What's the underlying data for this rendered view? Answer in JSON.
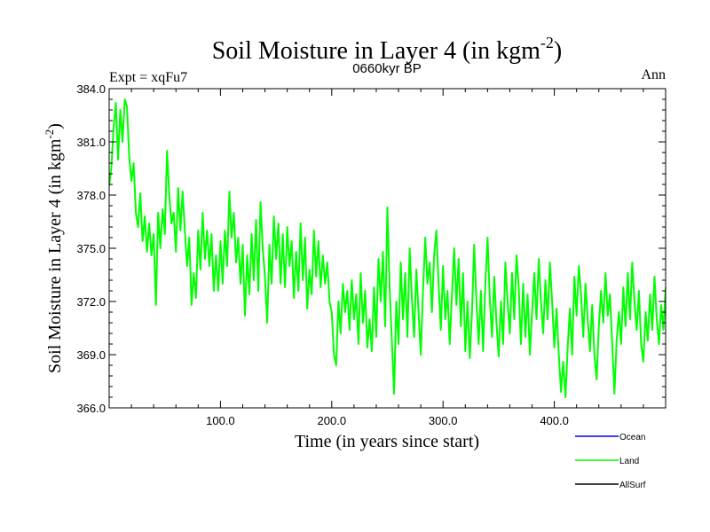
{
  "chart_data": {
    "type": "line",
    "title": "Soil Moisture in Layer 4 (in kgm",
    "title_sup": "-2",
    "title_close": ")",
    "subtitle": "0660kyr BP",
    "left_label": "Expt = xqFu7",
    "right_label": "Ann",
    "xlabel": "Time (in years since start)",
    "ylabel": "Soil Moisture in Layer 4 (in kgm",
    "ylabel_sup": "-2",
    "ylabel_close": ")",
    "xlim": [
      0,
      500
    ],
    "ylim": [
      366.0,
      384.0
    ],
    "x_ticks": [
      100,
      200,
      300,
      400
    ],
    "x_tick_labels": [
      "100.0",
      "200.0",
      "300.0",
      "400.0"
    ],
    "y_ticks": [
      366,
      369,
      372,
      375,
      378,
      381,
      384
    ],
    "y_tick_labels": [
      "366.0",
      "369.0",
      "372.0",
      "375.0",
      "378.0",
      "381.0",
      "384.0"
    ],
    "legend": [
      {
        "name": "Ocean",
        "color": "#0000ff"
      },
      {
        "name": "Land",
        "color": "#00ff00"
      },
      {
        "name": "AllSurf",
        "color": "#000000"
      }
    ],
    "series": [
      {
        "name": "Land",
        "color": "#00ff00",
        "points": [
          [
            0,
            378.5
          ],
          [
            2,
            379.6
          ],
          [
            4,
            381.8
          ],
          [
            6,
            383.2
          ],
          [
            8,
            380.0
          ],
          [
            10,
            382.8
          ],
          [
            12,
            381.0
          ],
          [
            14,
            383.4
          ],
          [
            16,
            383.0
          ],
          [
            18,
            380.2
          ],
          [
            20,
            378.8
          ],
          [
            22,
            379.8
          ],
          [
            24,
            377.0
          ],
          [
            26,
            376.2
          ],
          [
            28,
            378.1
          ],
          [
            30,
            375.4
          ],
          [
            32,
            376.8
          ],
          [
            34,
            374.8
          ],
          [
            36,
            376.4
          ],
          [
            38,
            374.6
          ],
          [
            40,
            375.8
          ],
          [
            42,
            371.8
          ],
          [
            44,
            377.0
          ],
          [
            46,
            375.0
          ],
          [
            48,
            377.2
          ],
          [
            50,
            375.8
          ],
          [
            52,
            380.5
          ],
          [
            54,
            378.0
          ],
          [
            56,
            376.4
          ],
          [
            58,
            377.0
          ],
          [
            60,
            374.8
          ],
          [
            62,
            378.4
          ],
          [
            64,
            376.0
          ],
          [
            66,
            378.2
          ],
          [
            68,
            376.0
          ],
          [
            70,
            374.0
          ],
          [
            72,
            375.6
          ],
          [
            74,
            371.8
          ],
          [
            76,
            373.6
          ],
          [
            78,
            372.2
          ],
          [
            80,
            376.0
          ],
          [
            82,
            373.8
          ],
          [
            84,
            377.0
          ],
          [
            86,
            374.4
          ],
          [
            88,
            376.0
          ],
          [
            90,
            374.0
          ],
          [
            92,
            375.8
          ],
          [
            94,
            372.6
          ],
          [
            96,
            374.6
          ],
          [
            98,
            372.6
          ],
          [
            100,
            375.4
          ],
          [
            102,
            373.0
          ],
          [
            104,
            376.0
          ],
          [
            106,
            374.0
          ],
          [
            108,
            378.2
          ],
          [
            110,
            375.6
          ],
          [
            112,
            377.0
          ],
          [
            114,
            374.2
          ],
          [
            116,
            375.6
          ],
          [
            118,
            373.0
          ],
          [
            120,
            375.2
          ],
          [
            122,
            371.2
          ],
          [
            124,
            374.6
          ],
          [
            126,
            372.4
          ],
          [
            128,
            375.8
          ],
          [
            130,
            373.2
          ],
          [
            132,
            376.6
          ],
          [
            134,
            372.6
          ],
          [
            136,
            377.6
          ],
          [
            138,
            375.0
          ],
          [
            140,
            373.4
          ],
          [
            142,
            370.8
          ],
          [
            144,
            375.2
          ],
          [
            146,
            373.0
          ],
          [
            148,
            376.8
          ],
          [
            150,
            374.4
          ],
          [
            152,
            376.4
          ],
          [
            154,
            373.0
          ],
          [
            156,
            375.8
          ],
          [
            158,
            372.8
          ],
          [
            160,
            376.2
          ],
          [
            162,
            374.0
          ],
          [
            164,
            375.4
          ],
          [
            166,
            372.2
          ],
          [
            168,
            374.8
          ],
          [
            170,
            372.6
          ],
          [
            172,
            376.4
          ],
          [
            174,
            373.2
          ],
          [
            176,
            375.6
          ],
          [
            178,
            371.6
          ],
          [
            180,
            373.8
          ],
          [
            182,
            372.4
          ],
          [
            184,
            376.0
          ],
          [
            186,
            373.4
          ],
          [
            188,
            375.4
          ],
          [
            190,
            372.8
          ],
          [
            192,
            374.6
          ],
          [
            194,
            373.0
          ],
          [
            196,
            374.2
          ],
          [
            198,
            372.0
          ],
          [
            200,
            371.4
          ],
          [
            202,
            369.0
          ],
          [
            204,
            368.4
          ],
          [
            206,
            372.0
          ],
          [
            208,
            370.2
          ],
          [
            210,
            373.0
          ],
          [
            212,
            371.4
          ],
          [
            214,
            372.6
          ],
          [
            216,
            370.4
          ],
          [
            218,
            373.2
          ],
          [
            220,
            371.0
          ],
          [
            222,
            372.4
          ],
          [
            224,
            369.6
          ],
          [
            226,
            373.6
          ],
          [
            228,
            370.8
          ],
          [
            230,
            372.6
          ],
          [
            232,
            369.4
          ],
          [
            234,
            371.0
          ],
          [
            236,
            369.2
          ],
          [
            238,
            372.8
          ],
          [
            240,
            370.0
          ],
          [
            242,
            374.4
          ],
          [
            244,
            372.0
          ],
          [
            246,
            374.8
          ],
          [
            248,
            370.6
          ],
          [
            250,
            377.3
          ],
          [
            252,
            372.8
          ],
          [
            254,
            369.8
          ],
          [
            256,
            366.8
          ],
          [
            258,
            372.0
          ],
          [
            260,
            369.6
          ],
          [
            262,
            374.2
          ],
          [
            264,
            371.0
          ],
          [
            266,
            373.6
          ],
          [
            268,
            370.0
          ],
          [
            270,
            375.0
          ],
          [
            272,
            372.2
          ],
          [
            274,
            370.0
          ],
          [
            276,
            373.8
          ],
          [
            278,
            371.4
          ],
          [
            280,
            369.0
          ],
          [
            282,
            372.6
          ],
          [
            284,
            375.6
          ],
          [
            286,
            373.0
          ],
          [
            288,
            374.2
          ],
          [
            290,
            371.4
          ],
          [
            292,
            374.6
          ],
          [
            294,
            376.0
          ],
          [
            296,
            373.0
          ],
          [
            298,
            370.4
          ],
          [
            300,
            374.0
          ],
          [
            302,
            371.0
          ],
          [
            304,
            372.6
          ],
          [
            306,
            369.6
          ],
          [
            308,
            372.4
          ],
          [
            310,
            375.0
          ],
          [
            312,
            371.8
          ],
          [
            314,
            374.4
          ],
          [
            316,
            370.6
          ],
          [
            318,
            373.6
          ],
          [
            320,
            369.2
          ],
          [
            322,
            372.0
          ],
          [
            324,
            368.8
          ],
          [
            326,
            371.4
          ],
          [
            328,
            375.2
          ],
          [
            330,
            372.0
          ],
          [
            332,
            369.6
          ],
          [
            334,
            372.6
          ],
          [
            336,
            369.2
          ],
          [
            338,
            373.0
          ],
          [
            340,
            375.6
          ],
          [
            342,
            372.2
          ],
          [
            344,
            370.0
          ],
          [
            346,
            373.4
          ],
          [
            348,
            370.8
          ],
          [
            350,
            368.9
          ],
          [
            352,
            372.0
          ],
          [
            354,
            369.6
          ],
          [
            356,
            374.2
          ],
          [
            358,
            372.0
          ],
          [
            360,
            370.2
          ],
          [
            362,
            373.6
          ],
          [
            364,
            371.0
          ],
          [
            366,
            374.6
          ],
          [
            368,
            372.8
          ],
          [
            370,
            369.6
          ],
          [
            372,
            373.0
          ],
          [
            374,
            370.0
          ],
          [
            376,
            372.4
          ],
          [
            378,
            369.0
          ],
          [
            380,
            371.4
          ],
          [
            382,
            373.6
          ],
          [
            384,
            371.0
          ],
          [
            386,
            374.4
          ],
          [
            388,
            372.0
          ],
          [
            390,
            370.2
          ],
          [
            392,
            373.2
          ],
          [
            394,
            371.0
          ],
          [
            396,
            374.2
          ],
          [
            398,
            372.0
          ],
          [
            400,
            369.4
          ],
          [
            402,
            371.6
          ],
          [
            404,
            369.0
          ],
          [
            406,
            366.9
          ],
          [
            408,
            368.6
          ],
          [
            410,
            366.6
          ],
          [
            412,
            369.4
          ],
          [
            414,
            371.6
          ],
          [
            416,
            369.0
          ],
          [
            418,
            373.4
          ],
          [
            420,
            371.2
          ],
          [
            422,
            374.0
          ],
          [
            424,
            372.4
          ],
          [
            426,
            370.0
          ],
          [
            428,
            373.0
          ],
          [
            430,
            371.0
          ],
          [
            432,
            369.2
          ],
          [
            434,
            371.8
          ],
          [
            436,
            369.0
          ],
          [
            438,
            367.6
          ],
          [
            440,
            370.6
          ],
          [
            442,
            372.6
          ],
          [
            444,
            370.8
          ],
          [
            446,
            373.6
          ],
          [
            448,
            371.2
          ],
          [
            450,
            372.4
          ],
          [
            452,
            369.6
          ],
          [
            454,
            366.8
          ],
          [
            456,
            369.8
          ],
          [
            458,
            371.4
          ],
          [
            460,
            369.6
          ],
          [
            462,
            372.8
          ],
          [
            464,
            370.6
          ],
          [
            466,
            373.6
          ],
          [
            468,
            371.0
          ],
          [
            470,
            374.2
          ],
          [
            472,
            372.0
          ],
          [
            474,
            370.4
          ],
          [
            476,
            372.6
          ],
          [
            478,
            369.6
          ],
          [
            480,
            368.6
          ],
          [
            482,
            371.4
          ],
          [
            484,
            369.8
          ],
          [
            486,
            372.4
          ],
          [
            488,
            370.4
          ],
          [
            490,
            373.4
          ],
          [
            492,
            371.0
          ],
          [
            494,
            369.6
          ],
          [
            496,
            371.8
          ],
          [
            498,
            370.4
          ],
          [
            500,
            372.8
          ]
        ]
      }
    ]
  }
}
